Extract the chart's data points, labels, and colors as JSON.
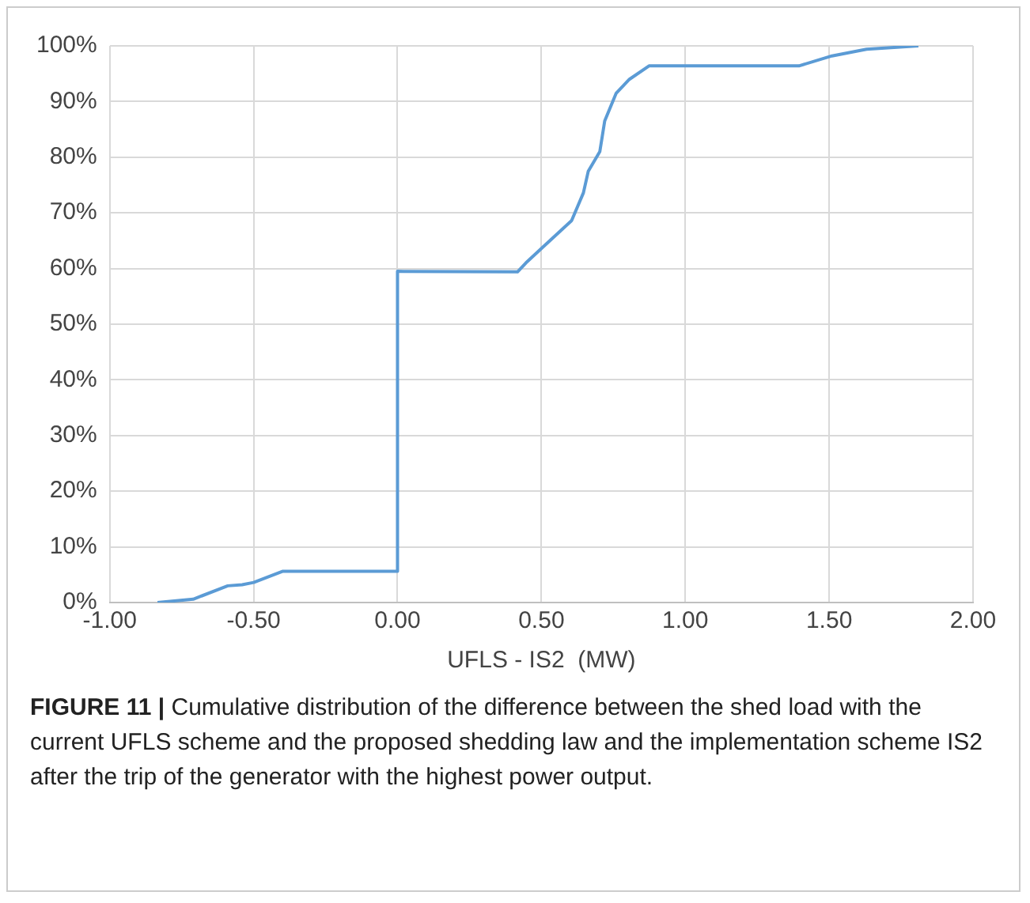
{
  "chart_data": {
    "type": "line",
    "xlabel": "UFLS - IS2  (MW)",
    "x": [
      -0.834,
      -0.71,
      -0.59,
      -0.54,
      -0.5,
      -0.4,
      0,
      0,
      0.417,
      0.446,
      0.5,
      0.605,
      0.646,
      0.663,
      0.703,
      0.72,
      0.76,
      0.806,
      0.874,
      1.395,
      1.51,
      1.63,
      1.81
    ],
    "series": [
      {
        "color": "#5b9bd5",
        "values": [
          0,
          0.6,
          3,
          3.2,
          3.6,
          5.6,
          5.6,
          59.5,
          59.4,
          61,
          63.6,
          68.6,
          73.6,
          77.5,
          81,
          86.5,
          91.5,
          94,
          96.4,
          96.4,
          98.2,
          99.4,
          100
        ]
      }
    ],
    "xlim": [
      -1,
      2
    ],
    "xticks": [
      {
        "value": -1,
        "label": "-1.00"
      },
      {
        "value": -0.5,
        "label": "-0.50"
      },
      {
        "value": 0,
        "label": "0.00"
      },
      {
        "value": 0.5,
        "label": "0.50"
      },
      {
        "value": 1,
        "label": "1.00"
      },
      {
        "value": 1.5,
        "label": "1.50"
      },
      {
        "value": 2,
        "label": "2.00"
      }
    ],
    "ylim": [
      0,
      100
    ],
    "yticks": [
      {
        "value": 0,
        "label": "0%"
      },
      {
        "value": 10,
        "label": "10%"
      },
      {
        "value": 20,
        "label": "20%"
      },
      {
        "value": 30,
        "label": "30%"
      },
      {
        "value": 40,
        "label": "40%"
      },
      {
        "value": 50,
        "label": "50%"
      },
      {
        "value": 60,
        "label": "60%"
      },
      {
        "value": 70,
        "label": "70%"
      },
      {
        "value": 80,
        "label": "80%"
      },
      {
        "value": 90,
        "label": "90%"
      },
      {
        "value": 100,
        "label": "100%"
      }
    ],
    "grid": true,
    "legend": false,
    "marker": "none",
    "line_style": "solid",
    "annotations": [
      "FIGURE 11 | Cumulative distribution of the difference between the shed load with the current UFLS scheme and the proposed shedding law and the implementation scheme IS2 after the trip of the generator with the highest power output."
    ]
  }
}
